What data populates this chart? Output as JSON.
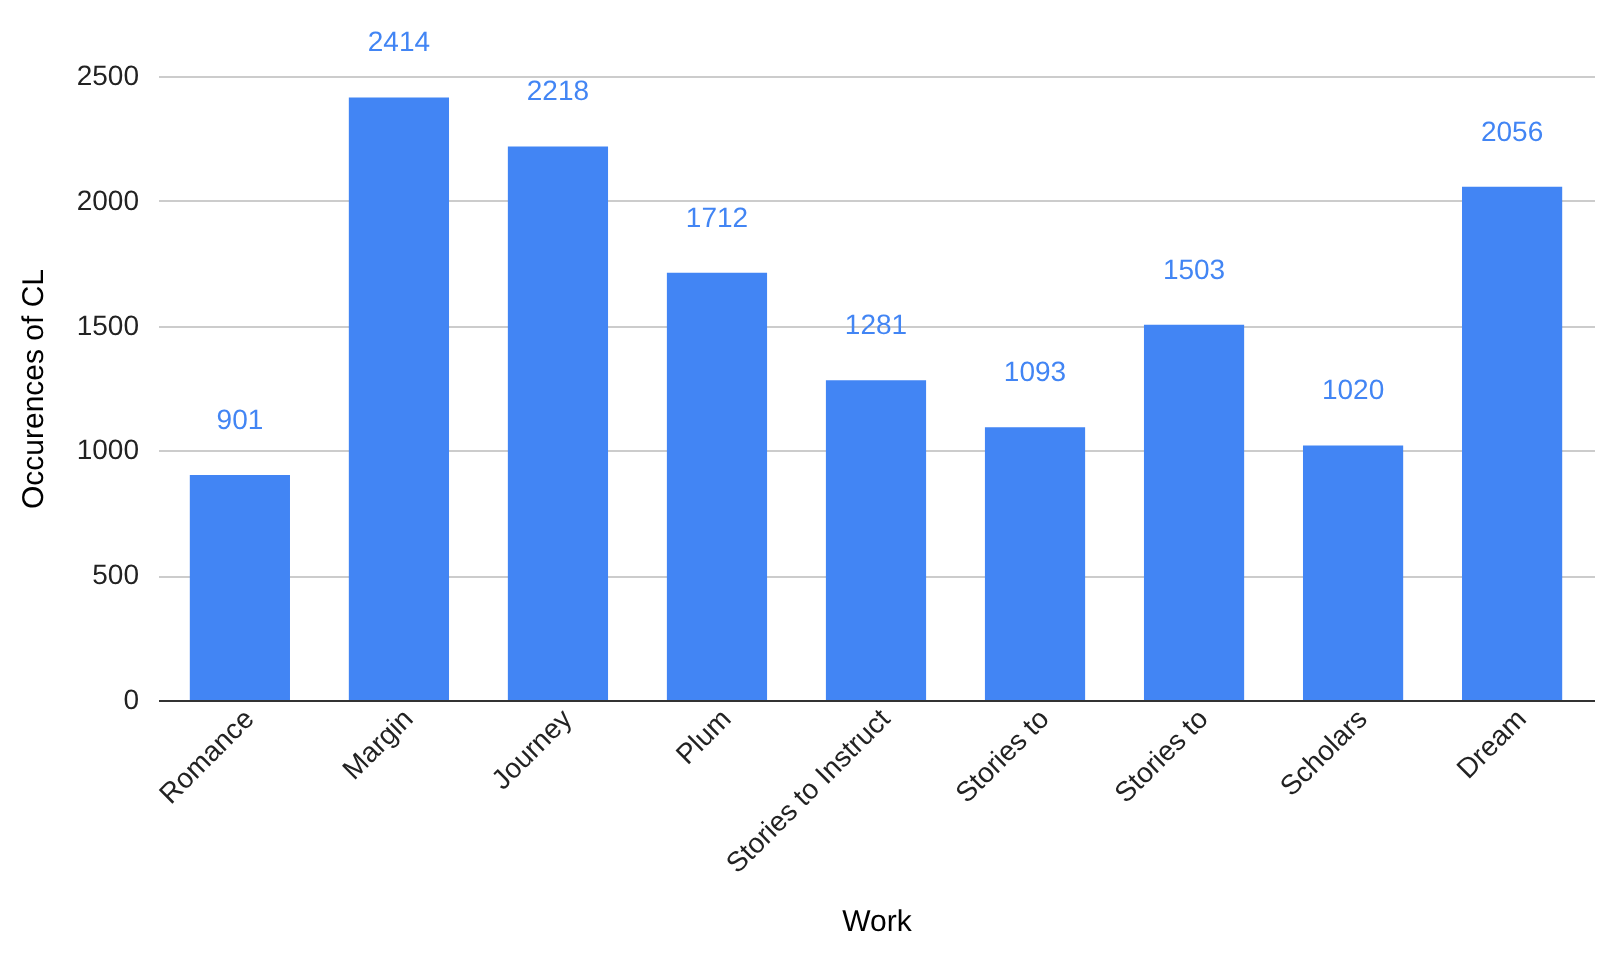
{
  "chart_data": {
    "type": "bar",
    "xlabel": "Work",
    "ylabel": "Occurences of CL",
    "categories": [
      "Romance",
      "Margin",
      "Journey",
      "Plum",
      "Stories to Instruct",
      "Stories to",
      "Stories to",
      "Scholars",
      "Dream"
    ],
    "values": [
      901,
      2414,
      2218,
      1712,
      1281,
      1093,
      1503,
      1020,
      2056
    ],
    "color": "#4285f4",
    "ylim": [
      0,
      2500
    ],
    "yticks": [
      0,
      500,
      1000,
      1500,
      2000,
      2500
    ],
    "grid": "y",
    "data_labels": true
  }
}
